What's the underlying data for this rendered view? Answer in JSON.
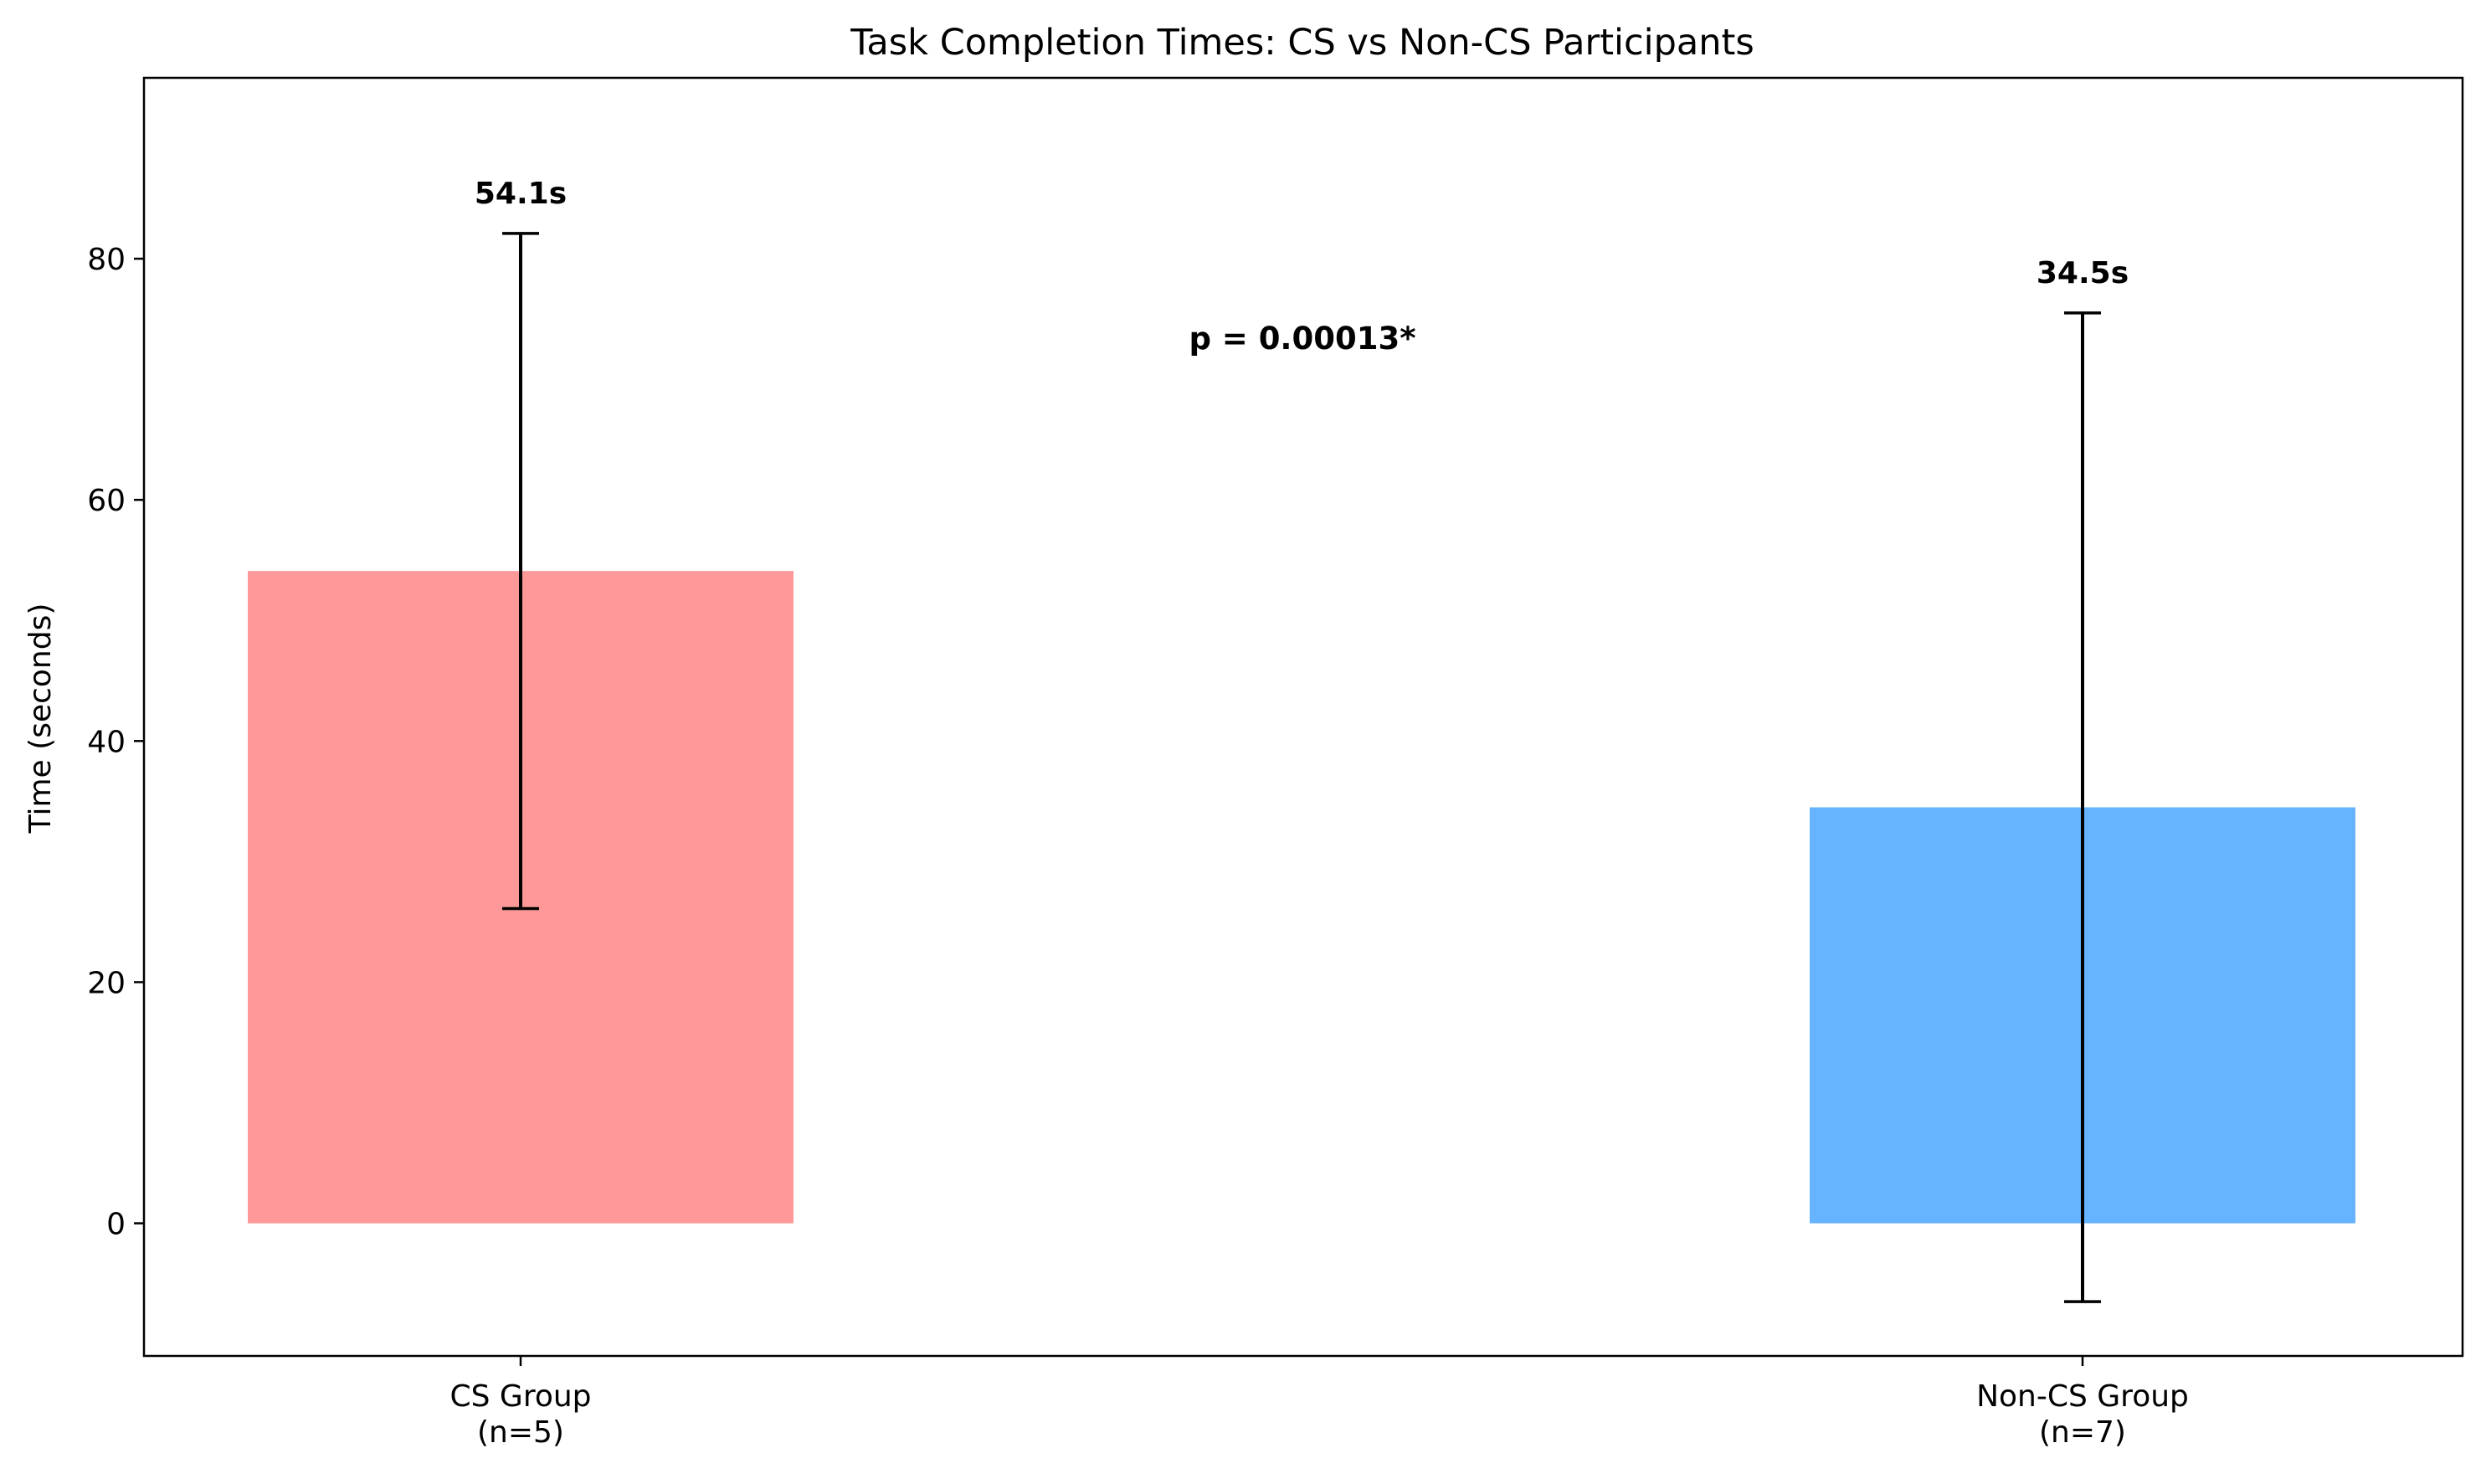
{
  "chart_data": {
    "type": "bar",
    "title": "Task Completion Times: CS vs Non-CS Participants",
    "xlabel": "",
    "ylabel": "Time (seconds)",
    "categories": [
      "CS Group\n(n=5)",
      "Non-CS Group\n(n=7)"
    ],
    "values": [
      54.1,
      34.5
    ],
    "error": [
      28.0,
      41.0
    ],
    "colors": [
      "#ff9999",
      "#66b3ff"
    ],
    "data_labels": [
      "54.1s",
      "34.5s"
    ],
    "annotation": "p = 0.00013*",
    "ylim": [
      -11,
      95
    ],
    "yticks": [
      0,
      20,
      40,
      60,
      80
    ],
    "grid": false,
    "legend": false
  }
}
